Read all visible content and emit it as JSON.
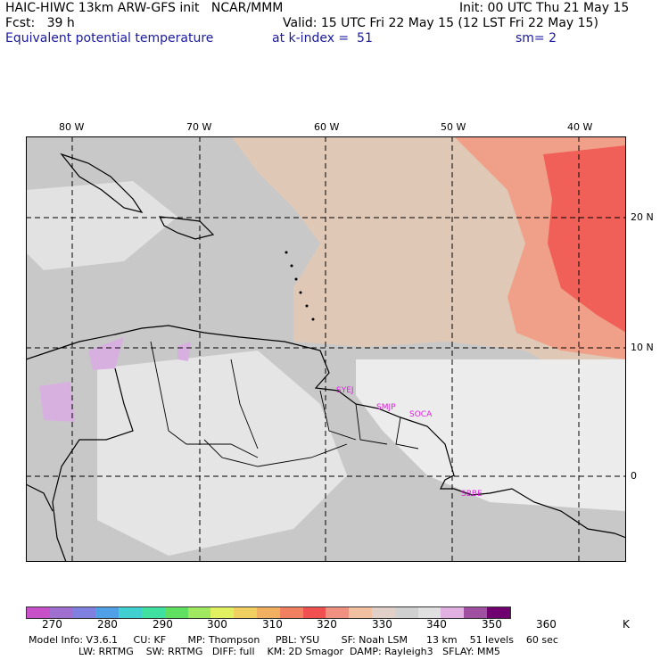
{
  "header": {
    "line1_left": "HAIC-HIWC 13km ARW-GFS init   NCAR/MMM",
    "line1_right": "Init: 00 UTC Thu 21 May 15",
    "line2_left": "Fcst:   39 h",
    "line2_right": "Valid: 15 UTC Fri 22 May 15 (12 LST Fri 22 May 15)",
    "line3_left": "Equivalent potential temperature",
    "line3_mid": "at k-index =  51",
    "line3_right": "sm= 2"
  },
  "axes": {
    "lon_labels": [
      "80 W",
      "70 W",
      "60 W",
      "50 W",
      "40 W"
    ],
    "lat_labels": [
      "20 N",
      "10 N",
      "0"
    ]
  },
  "stations": [
    "SYEJ",
    "SMJP",
    "SOCA",
    "SBBE"
  ],
  "colorbar": {
    "labels": [
      "270",
      "280",
      "290",
      "300",
      "310",
      "320",
      "330",
      "340",
      "350",
      "360"
    ],
    "unit": "K",
    "colors": [
      "#c850c8",
      "#a070d0",
      "#8080e0",
      "#50a0e8",
      "#40d0d0",
      "#40e0a0",
      "#60e060",
      "#a0e860",
      "#e0f060",
      "#f0d060",
      "#f0b060",
      "#f08060",
      "#f05050",
      "#f09080",
      "#f0c0a0",
      "#e0d0c8",
      "#d0d0d0",
      "#e0e0e0",
      "#e0b0e0",
      "#a050a0",
      "#700070"
    ]
  },
  "footer": {
    "line1": "Model Info: V3.6.1     CU: KF       MP: Thompson     PBL: YSU       SF: Noah LSM      13 km    51 levels    60 sec",
    "line2": "                LW: RRTMG    SW: RRTMG   DIFF: full    KM: 2D Smagor  DAMP: Rayleigh3   SFLAY: MM5"
  },
  "palette": {
    "grey": "#c8c8c8",
    "light": "#ececec",
    "tan": "#e8c8b0",
    "salmon": "#f0a088",
    "red": "#f06058",
    "violet": "#d8b0e0"
  }
}
